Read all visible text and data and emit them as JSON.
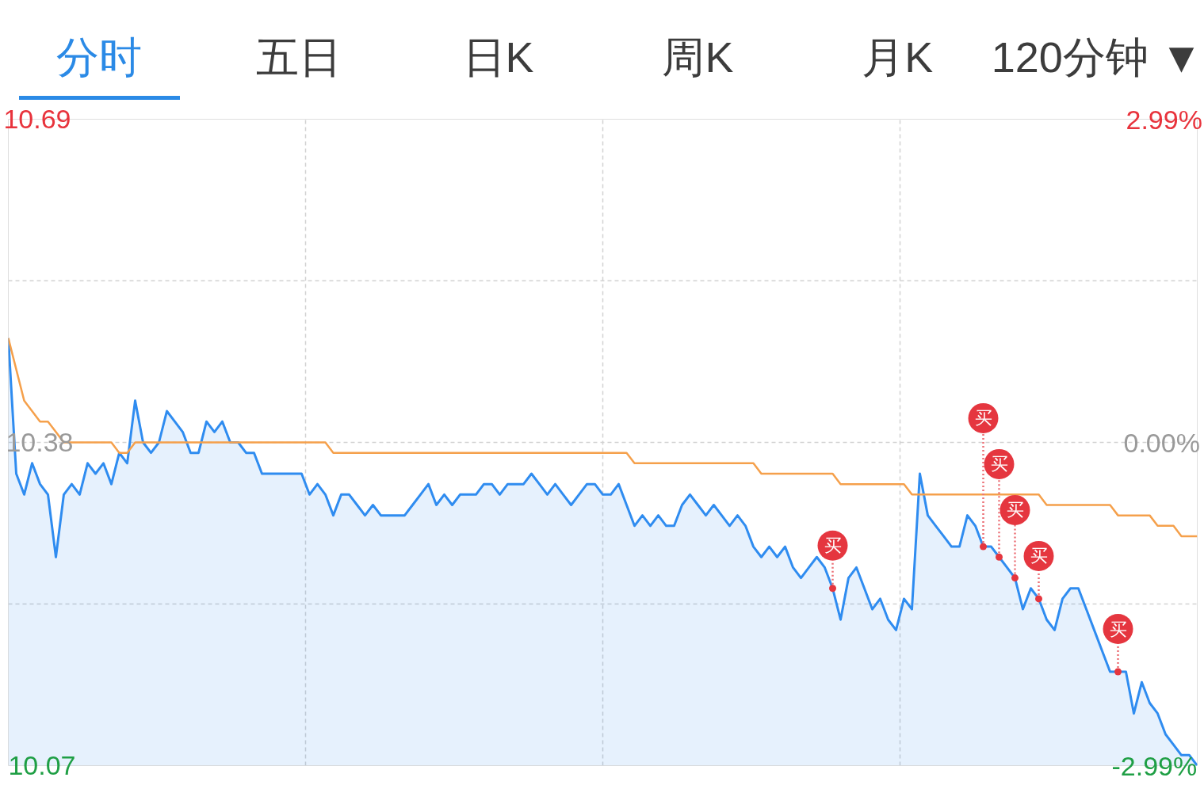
{
  "chart_data": {
    "type": "area",
    "title": "分时",
    "annotations": [
      "五日",
      "日K",
      "周K",
      "月K",
      "120分钟 ▼"
    ],
    "categories": [
      null,
      null,
      null,
      null,
      null,
      null,
      null,
      null,
      null,
      null,
      null,
      null,
      null,
      null,
      null,
      null,
      null,
      null,
      null,
      null,
      null,
      null,
      null,
      null,
      null,
      null,
      null,
      null,
      null,
      null,
      null,
      null,
      null,
      null,
      null,
      null,
      null,
      null,
      null,
      null,
      null,
      null,
      null,
      null,
      null,
      null,
      null,
      null,
      null,
      null,
      null,
      null,
      null,
      null,
      null,
      null,
      null,
      null,
      null,
      null,
      null,
      null,
      null,
      null,
      null,
      null,
      null,
      null,
      null,
      null,
      null,
      null,
      null,
      null,
      null,
      null,
      null,
      null,
      null,
      null,
      null,
      null,
      null,
      null,
      null,
      null,
      null,
      null,
      null,
      null,
      null,
      null,
      null,
      null,
      null,
      null,
      null,
      null,
      null,
      null,
      null,
      null,
      null,
      null,
      null,
      null,
      null,
      null,
      null,
      null,
      null,
      null,
      null,
      null,
      null,
      null,
      null,
      null,
      null,
      null,
      null,
      null,
      null,
      null,
      null,
      null,
      null,
      null,
      null,
      null,
      null,
      null,
      null,
      null,
      null,
      null,
      null,
      null,
      null,
      null,
      null,
      null,
      null,
      null,
      null,
      null,
      null,
      null,
      null,
      null,
      null
    ],
    "series": [
      {
        "color": "#2f8cf0",
        "values": [
          10.48,
          10.35,
          10.33,
          10.36,
          10.34,
          10.33,
          10.27,
          10.33,
          10.34,
          10.33,
          10.36,
          10.35,
          10.36,
          10.34,
          10.37,
          10.36,
          10.42,
          10.38,
          10.37,
          10.38,
          10.41,
          10.4,
          10.39,
          10.37,
          10.37,
          10.4,
          10.39,
          10.4,
          10.38,
          10.38,
          10.37,
          10.37,
          10.35,
          10.35,
          10.35,
          10.35,
          10.35,
          10.35,
          10.33,
          10.34,
          10.33,
          10.31,
          10.33,
          10.33,
          10.32,
          10.31,
          10.32,
          10.31,
          10.31,
          10.31,
          10.31,
          10.32,
          10.33,
          10.34,
          10.32,
          10.33,
          10.32,
          10.33,
          10.33,
          10.33,
          10.34,
          10.34,
          10.33,
          10.34,
          10.34,
          10.34,
          10.35,
          10.34,
          10.33,
          10.34,
          10.33,
          10.32,
          10.33,
          10.34,
          10.34,
          10.33,
          10.33,
          10.34,
          10.32,
          10.3,
          10.31,
          10.3,
          10.31,
          10.3,
          10.3,
          10.32,
          10.33,
          10.32,
          10.31,
          10.32,
          10.31,
          10.3,
          10.31,
          10.3,
          10.28,
          10.27,
          10.28,
          10.27,
          10.28,
          10.26,
          10.25,
          10.26,
          10.27,
          10.26,
          10.24,
          10.21,
          10.25,
          10.26,
          10.24,
          10.22,
          10.23,
          10.21,
          10.2,
          10.23,
          10.22,
          10.35,
          10.31,
          10.3,
          10.29,
          10.28,
          10.28,
          10.31,
          10.3,
          10.28,
          10.28,
          10.27,
          10.26,
          10.25,
          10.22,
          10.24,
          10.23,
          10.21,
          10.2,
          10.23,
          10.24,
          10.24,
          10.22,
          10.2,
          10.18,
          10.16,
          10.16,
          10.16,
          10.12,
          10.15,
          10.13,
          10.12,
          10.1,
          10.09,
          10.08,
          10.08,
          10.07
        ]
      },
      {
        "type": "line",
        "color": "#f5a04b",
        "values": [
          10.48,
          10.45,
          10.42,
          10.41,
          10.4,
          10.4,
          10.39,
          10.38,
          10.38,
          10.38,
          10.38,
          10.38,
          10.38,
          10.38,
          10.37,
          10.37,
          10.38,
          10.38,
          10.38,
          10.38,
          10.38,
          10.38,
          10.38,
          10.38,
          10.38,
          10.38,
          10.38,
          10.38,
          10.38,
          10.38,
          10.38,
          10.38,
          10.38,
          10.38,
          10.38,
          10.38,
          10.38,
          10.38,
          10.38,
          10.38,
          10.38,
          10.37,
          10.37,
          10.37,
          10.37,
          10.37,
          10.37,
          10.37,
          10.37,
          10.37,
          10.37,
          10.37,
          10.37,
          10.37,
          10.37,
          10.37,
          10.37,
          10.37,
          10.37,
          10.37,
          10.37,
          10.37,
          10.37,
          10.37,
          10.37,
          10.37,
          10.37,
          10.37,
          10.37,
          10.37,
          10.37,
          10.37,
          10.37,
          10.37,
          10.37,
          10.37,
          10.37,
          10.37,
          10.37,
          10.36,
          10.36,
          10.36,
          10.36,
          10.36,
          10.36,
          10.36,
          10.36,
          10.36,
          10.36,
          10.36,
          10.36,
          10.36,
          10.36,
          10.36,
          10.36,
          10.35,
          10.35,
          10.35,
          10.35,
          10.35,
          10.35,
          10.35,
          10.35,
          10.35,
          10.35,
          10.34,
          10.34,
          10.34,
          10.34,
          10.34,
          10.34,
          10.34,
          10.34,
          10.34,
          10.33,
          10.33,
          10.33,
          10.33,
          10.33,
          10.33,
          10.33,
          10.33,
          10.33,
          10.33,
          10.33,
          10.33,
          10.33,
          10.33,
          10.33,
          10.33,
          10.33,
          10.32,
          10.32,
          10.32,
          10.32,
          10.32,
          10.32,
          10.32,
          10.32,
          10.32,
          10.31,
          10.31,
          10.31,
          10.31,
          10.31,
          10.3,
          10.3,
          10.3,
          10.29,
          10.29,
          10.29
        ]
      },
      {
        "type": "scatter",
        "name": "买",
        "color": "#e5363f",
        "values": [
          null,
          null,
          null,
          null,
          null,
          null,
          null,
          null,
          null,
          null,
          null,
          null,
          null,
          null,
          null,
          null,
          null,
          null,
          null,
          null,
          null,
          null,
          null,
          null,
          null,
          null,
          null,
          null,
          null,
          null,
          null,
          null,
          null,
          null,
          null,
          null,
          null,
          null,
          null,
          null,
          null,
          null,
          null,
          null,
          null,
          null,
          null,
          null,
          null,
          null,
          null,
          null,
          null,
          null,
          null,
          null,
          null,
          null,
          null,
          null,
          null,
          null,
          null,
          null,
          null,
          null,
          null,
          null,
          null,
          null,
          null,
          null,
          null,
          null,
          null,
          null,
          null,
          null,
          null,
          null,
          null,
          null,
          null,
          null,
          null,
          null,
          null,
          null,
          null,
          null,
          null,
          null,
          null,
          null,
          null,
          null,
          null,
          null,
          null,
          null,
          null,
          null,
          null,
          null,
          10.24,
          null,
          null,
          null,
          null,
          null,
          null,
          null,
          null,
          null,
          null,
          null,
          null,
          null,
          null,
          null,
          null,
          null,
          null,
          10.28,
          null,
          10.27,
          null,
          10.25,
          null,
          null,
          10.23,
          null,
          null,
          null,
          null,
          null,
          null,
          null,
          null,
          null,
          10.16,
          null,
          null,
          null,
          null,
          null,
          null,
          null,
          null,
          null,
          null
        ]
      }
    ],
    "ylim": [
      10.07,
      10.69
    ],
    "yticks": [
      10.07,
      {
        "value": 10.225,
        "label": null
      },
      10.38,
      {
        "value": 10.535,
        "label": null
      },
      10.69
    ],
    "y2lim": [
      -2.99,
      2.99
    ],
    "y2ticks": [
      {
        "value": -2.99,
        "label": "-2.99%"
      },
      {
        "value": 0,
        "label": "0.00%"
      },
      {
        "value": 2.99,
        "label": "2.99%"
      }
    ],
    "grid": true
  }
}
